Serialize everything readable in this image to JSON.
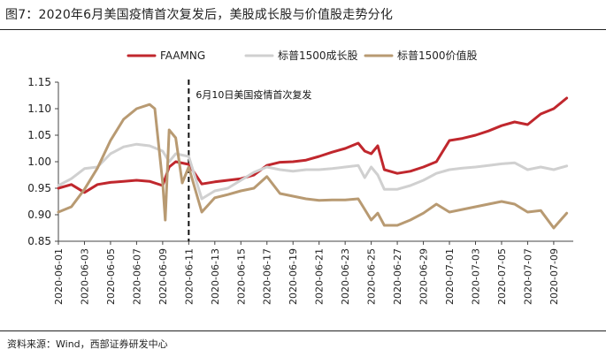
{
  "figure": {
    "title": "图7：2020年6月美国疫情首次复发后，美股成长股与价值股走势分化",
    "source": "资料来源：Wind，西部证券研发中心"
  },
  "chart_data": {
    "type": "line",
    "title": "图7：2020年6月美国疫情首次复发后，美股成长股与价值股走势分化",
    "xlabel": "",
    "ylabel": "",
    "ylim": [
      0.85,
      1.15
    ],
    "y_ticks": [
      "0.85",
      "0.90",
      "0.95",
      "1.00",
      "1.05",
      "1.10",
      "1.15"
    ],
    "x_ticks": [
      "2020-06-01",
      "2020-06-03",
      "2020-06-05",
      "2020-06-07",
      "2020-06-09",
      "2020-06-11",
      "2020-06-13",
      "2020-06-15",
      "2020-06-17",
      "2020-06-19",
      "2020-06-21",
      "2020-06-23",
      "2020-06-25",
      "2020-06-27",
      "2020-06-29",
      "2020-07-01",
      "2020-07-03",
      "2020-07-05",
      "2020-07-07",
      "2020-07-09"
    ],
    "x_range": [
      0,
      39.5
    ],
    "grid": false,
    "legend_position": "top-center",
    "annotation": {
      "x": 10,
      "text": "6月10日美国疫情首次复发"
    },
    "series": [
      {
        "name": "FAAMNG",
        "color": "#c0272d",
        "x": [
          0,
          1,
          2,
          3,
          4,
          5,
          6,
          7,
          8,
          8.5,
          9,
          10,
          11,
          12,
          13,
          14,
          15,
          16,
          17,
          18,
          19,
          20,
          21,
          22,
          23,
          23.5,
          24,
          24.5,
          25,
          26,
          27,
          28,
          29,
          30,
          31,
          32,
          33,
          34,
          35,
          36,
          37,
          38,
          39
        ],
        "values": [
          0.95,
          0.957,
          0.942,
          0.957,
          0.961,
          0.963,
          0.965,
          0.963,
          0.955,
          0.99,
          1.0,
          0.995,
          0.958,
          0.962,
          0.965,
          0.968,
          0.975,
          0.993,
          0.999,
          1.0,
          1.003,
          1.01,
          1.018,
          1.025,
          1.035,
          1.02,
          1.015,
          1.03,
          0.985,
          0.978,
          0.982,
          0.99,
          1.0,
          1.04,
          1.044,
          1.05,
          1.058,
          1.068,
          1.075,
          1.07,
          1.09,
          1.1,
          1.12
        ]
      },
      {
        "name": "标普1500成长股",
        "color": "#d0d0d0",
        "x": [
          0,
          1,
          2,
          3,
          4,
          5,
          6,
          7,
          8,
          8.5,
          9,
          10,
          11,
          12,
          13,
          14,
          15,
          16,
          17,
          18,
          19,
          20,
          21,
          22,
          23,
          23.5,
          24,
          24.5,
          25,
          26,
          27,
          28,
          29,
          30,
          31,
          32,
          33,
          34,
          35,
          36,
          37,
          38,
          39
        ],
        "values": [
          0.955,
          0.968,
          0.987,
          0.99,
          1.015,
          1.028,
          1.033,
          1.03,
          1.02,
          1.0,
          1.015,
          1.01,
          0.93,
          0.945,
          0.95,
          0.965,
          0.98,
          0.99,
          0.985,
          0.982,
          0.985,
          0.985,
          0.987,
          0.99,
          0.993,
          0.97,
          0.99,
          0.975,
          0.948,
          0.948,
          0.955,
          0.965,
          0.978,
          0.985,
          0.988,
          0.99,
          0.993,
          0.996,
          0.998,
          0.985,
          0.99,
          0.985,
          0.992
        ]
      },
      {
        "name": "标普1500价值股",
        "color": "#b89a72",
        "x": [
          0,
          1,
          2,
          3,
          4,
          5,
          6,
          7,
          7.4,
          8,
          8.2,
          8.5,
          9,
          9.5,
          10,
          11,
          12,
          13,
          14,
          15,
          16,
          17,
          18,
          19,
          20,
          21,
          22,
          23,
          23.5,
          24,
          24.5,
          25,
          26,
          27,
          28,
          29,
          30,
          31,
          32,
          33,
          34,
          35,
          36,
          37,
          38,
          39
        ],
        "values": [
          0.905,
          0.915,
          0.948,
          0.988,
          1.04,
          1.08,
          1.1,
          1.108,
          1.1,
          0.96,
          0.89,
          1.06,
          1.045,
          0.96,
          0.99,
          0.905,
          0.932,
          0.938,
          0.945,
          0.95,
          0.972,
          0.94,
          0.935,
          0.93,
          0.927,
          0.928,
          0.928,
          0.93,
          0.91,
          0.89,
          0.903,
          0.88,
          0.88,
          0.89,
          0.903,
          0.92,
          0.905,
          0.91,
          0.915,
          0.92,
          0.925,
          0.92,
          0.905,
          0.908,
          0.875,
          0.903
        ]
      }
    ]
  }
}
